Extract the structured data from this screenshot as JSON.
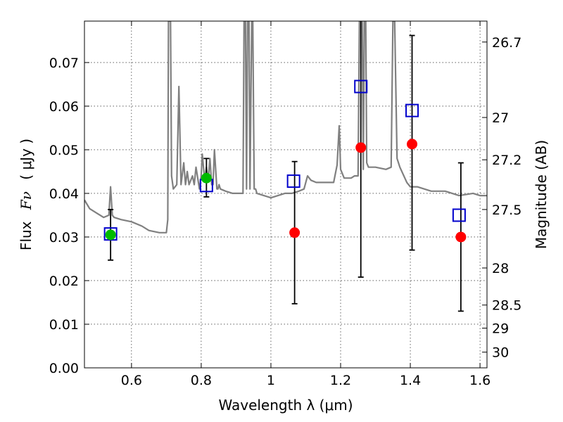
{
  "chart_data": {
    "type": "scatter",
    "xlabel": "Wavelength  λ (μm)",
    "ylabel_text": "Flux",
    "ylabel_symbol": "Fν",
    "ylabel_units": "( μJy )",
    "ylabel_right": "Magnitude (AB)",
    "xlim": [
      0.465,
      1.62
    ],
    "ylim": [
      0.0,
      0.0795
    ],
    "grid": true,
    "x_ticks": [
      0.6,
      0.8,
      1.0,
      1.2,
      1.4,
      1.6
    ],
    "x_tick_labels": [
      "0.6",
      "0.8",
      "1",
      "1.2",
      "1.4",
      "1.6"
    ],
    "y_ticks": [
      0.0,
      0.01,
      0.02,
      0.03,
      0.04,
      0.05,
      0.06,
      0.07
    ],
    "y_tick_labels": [
      "0.00",
      "0.01",
      "0.02",
      "0.03",
      "0.04",
      "0.05",
      "0.06",
      "0.07"
    ],
    "right_ticks": [
      {
        "flux": 0.0747,
        "label": "26.7"
      },
      {
        "flux": 0.0574,
        "label": "27"
      },
      {
        "flux": 0.0477,
        "label": "27.2"
      },
      {
        "flux": 0.0363,
        "label": "27.5"
      },
      {
        "flux": 0.0229,
        "label": "28"
      },
      {
        "flux": 0.0144,
        "label": "28.5"
      },
      {
        "flux": 0.0091,
        "label": "29"
      },
      {
        "flux": 0.0036,
        "label": "30"
      }
    ],
    "colors": {
      "model": "#808080",
      "observed": "#ff0000",
      "detected": "#00bb00",
      "model_phot": "#0000cc",
      "errorbar": "#000000"
    },
    "series": [
      {
        "name": "model_spectrum",
        "type": "line",
        "x": [
          0.465,
          0.48,
          0.5,
          0.52,
          0.535,
          0.54,
          0.545,
          0.55,
          0.57,
          0.6,
          0.63,
          0.65,
          0.68,
          0.7,
          0.704,
          0.706,
          0.708,
          0.71,
          0.712,
          0.715,
          0.72,
          0.73,
          0.736,
          0.742,
          0.75,
          0.755,
          0.76,
          0.765,
          0.775,
          0.78,
          0.785,
          0.795,
          0.8,
          0.803,
          0.81,
          0.815,
          0.82,
          0.825,
          0.83,
          0.834,
          0.838,
          0.845,
          0.848,
          0.851,
          0.855,
          0.87,
          0.89,
          0.91,
          0.92,
          0.923,
          0.927,
          0.93,
          0.933,
          0.937,
          0.94,
          0.945,
          0.948,
          0.952,
          0.956,
          0.96,
          0.98,
          1.0,
          1.02,
          1.04,
          1.06,
          1.08,
          1.095,
          1.105,
          1.115,
          1.13,
          1.15,
          1.18,
          1.19,
          1.196,
          1.2,
          1.21,
          1.23,
          1.24,
          1.25,
          1.254,
          1.258,
          1.262,
          1.265,
          1.268,
          1.272,
          1.275,
          1.28,
          1.3,
          1.33,
          1.345,
          1.35,
          1.355,
          1.362,
          1.37,
          1.39,
          1.4,
          1.42,
          1.46,
          1.5,
          1.54,
          1.58,
          1.6,
          1.62
        ],
        "y": [
          0.0385,
          0.0365,
          0.0355,
          0.0345,
          0.035,
          0.0415,
          0.035,
          0.0345,
          0.034,
          0.0335,
          0.0325,
          0.0315,
          0.031,
          0.031,
          0.034,
          0.0795,
          0.0795,
          0.0795,
          0.0795,
          0.044,
          0.041,
          0.042,
          0.0645,
          0.042,
          0.047,
          0.042,
          0.045,
          0.042,
          0.044,
          0.042,
          0.046,
          0.041,
          0.044,
          0.049,
          0.043,
          0.046,
          0.043,
          0.048,
          0.042,
          0.042,
          0.05,
          0.041,
          0.041,
          0.042,
          0.041,
          0.0405,
          0.04,
          0.04,
          0.04,
          0.0795,
          0.0795,
          0.041,
          0.0795,
          0.0795,
          0.041,
          0.0795,
          0.0795,
          0.041,
          0.041,
          0.04,
          0.0395,
          0.039,
          0.0395,
          0.04,
          0.04,
          0.0405,
          0.041,
          0.044,
          0.043,
          0.0425,
          0.0425,
          0.0425,
          0.0465,
          0.0555,
          0.0455,
          0.0435,
          0.0435,
          0.044,
          0.044,
          0.0795,
          0.0795,
          0.0795,
          0.0455,
          0.0795,
          0.0795,
          0.047,
          0.046,
          0.046,
          0.0455,
          0.046,
          0.0795,
          0.0795,
          0.048,
          0.046,
          0.0425,
          0.0415,
          0.0415,
          0.0405,
          0.0405,
          0.0395,
          0.04,
          0.0395,
          0.0395
        ]
      },
      {
        "name": "model_photometry",
        "type": "scatter",
        "marker": "open-square",
        "x": [
          0.54,
          0.815,
          1.065,
          1.258,
          1.405,
          1.54
        ],
        "y": [
          0.0307,
          0.0418,
          0.0428,
          0.0645,
          0.059,
          0.035
        ]
      },
      {
        "name": "observed_flux",
        "type": "scatter",
        "marker": "filled-circle",
        "x": [
          1.068,
          1.258,
          1.405,
          1.545
        ],
        "y": [
          0.031,
          0.0505,
          0.0513,
          0.03
        ],
        "yerr_low": [
          0.0163,
          0.0297,
          0.0243,
          0.017
        ],
        "yerr_high": [
          0.0163,
          0.0355,
          0.0249,
          0.017
        ]
      },
      {
        "name": "detected_flux",
        "type": "scatter",
        "marker": "filled-circle",
        "x": [
          0.54,
          0.815
        ],
        "y": [
          0.0305,
          0.0435
        ],
        "yerr_low": [
          0.0058,
          0.0043
        ],
        "yerr_high": [
          0.0058,
          0.0045
        ]
      }
    ]
  }
}
